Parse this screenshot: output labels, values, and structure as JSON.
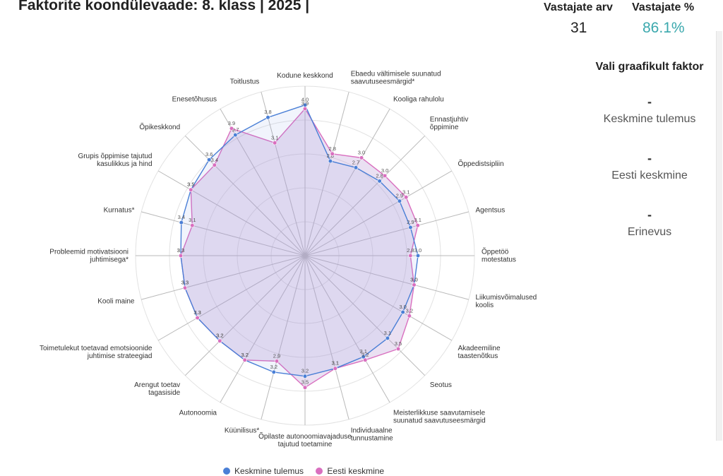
{
  "header": {
    "title": "Faktorite koondülevaade: 8. klass | 2025 |",
    "respondents_label": "Vastajate arv",
    "respondents_value": "31",
    "pct_label": "Vastajate %",
    "pct_value": "86.1%"
  },
  "side_panel": {
    "header": "Vali graafikult faktor",
    "rows": [
      {
        "dash": "-",
        "label": "Keskmine tulemus"
      },
      {
        "dash": "-",
        "label": "Eesti keskmine"
      },
      {
        "dash": "-",
        "label": "Erinevus"
      }
    ]
  },
  "colors": {
    "blue": "#4a7fd6",
    "pink": "#d96fbf",
    "accent": "#3aa8ad"
  },
  "chart_data": {
    "type": "radar",
    "rmax": 4.5,
    "axes": [
      {
        "label": [
          "Kodune keskkond"
        ],
        "blue": 4.0,
        "pink": 3.9
      },
      {
        "label": [
          "Ebaedu vältimisele suunatud",
          "saavutuseesmärgid*"
        ],
        "blue": 2.6,
        "pink": 2.8
      },
      {
        "label": [
          "Kooliga rahulolu"
        ],
        "blue": 2.7,
        "pink": 3.0
      },
      {
        "label": [
          "Ennastjuhtiv",
          "õppimine"
        ],
        "blue": 2.8,
        "pink": 3.0
      },
      {
        "label": [
          "Õppedistsipliin"
        ],
        "blue": 2.9,
        "pink": 3.1
      },
      {
        "label": [
          "Agentsus"
        ],
        "blue": 2.9,
        "pink": 3.1
      },
      {
        "label": [
          "Õppetöö",
          "motestatus"
        ],
        "blue": 3.0,
        "pink": 2.8
      },
      {
        "label": [
          "Liikumisvõimalused",
          "koolis"
        ],
        "blue": 3.0,
        "pink": 3.0
      },
      {
        "label": [
          "Akadeemiline",
          "taastenõtkus"
        ],
        "blue": 3.0,
        "pink": 3.2
      },
      {
        "label": [
          "Seotus"
        ],
        "blue": 3.1,
        "pink": 3.5
      },
      {
        "label": [
          "Meisterlikkuse saavutamisele",
          "suunatud saavutuseesmärgid"
        ],
        "blue": 3.1,
        "pink": 3.2
      },
      {
        "label": [
          "Individuaalne",
          "tunnustamine"
        ],
        "blue": 3.1,
        "pink": 3.1
      },
      {
        "label": [
          "Õpilaste autonoomiavajaduse",
          "tajutud toetamine"
        ],
        "blue": 3.2,
        "pink": 3.5
      },
      {
        "label": [
          "Küünilisus*"
        ],
        "blue": 3.2,
        "pink": 2.9
      },
      {
        "label": [
          "Autonoomia"
        ],
        "blue": 3.2,
        "pink": 3.2
      },
      {
        "label": [
          "Arengut toetav",
          "tagasiside"
        ],
        "blue": 3.2,
        "pink": 3.2
      },
      {
        "label": [
          "Toimetulekut toetavad emotsioonide",
          "juhtimise strateegiad"
        ],
        "blue": 3.3,
        "pink": 3.3
      },
      {
        "label": [
          "Kooli maine"
        ],
        "blue": 3.3,
        "pink": 3.3
      },
      {
        "label": [
          "Probleemid motivatsiooni",
          "juhtimisega*"
        ],
        "blue": 3.3,
        "pink": 3.3
      },
      {
        "label": [
          "Kurnatus*"
        ],
        "blue": 3.4,
        "pink": 3.1
      },
      {
        "label": [
          "Grupis õppimise tajutud",
          "kasulikkus ja hind"
        ],
        "blue": 3.5,
        "pink": 3.5
      },
      {
        "label": [
          "Õpikeskkond"
        ],
        "blue": 3.6,
        "pink": 3.4
      },
      {
        "label": [
          "Enesetõhusus"
        ],
        "blue": 3.7,
        "pink": 3.9
      },
      {
        "label": [
          "Toitlustus"
        ],
        "blue": 3.8,
        "pink": 3.1
      }
    ],
    "legend": [
      {
        "key": "blue",
        "label": "Keskmine tulemus"
      },
      {
        "key": "pink",
        "label": "Eesti keskmine"
      }
    ]
  }
}
